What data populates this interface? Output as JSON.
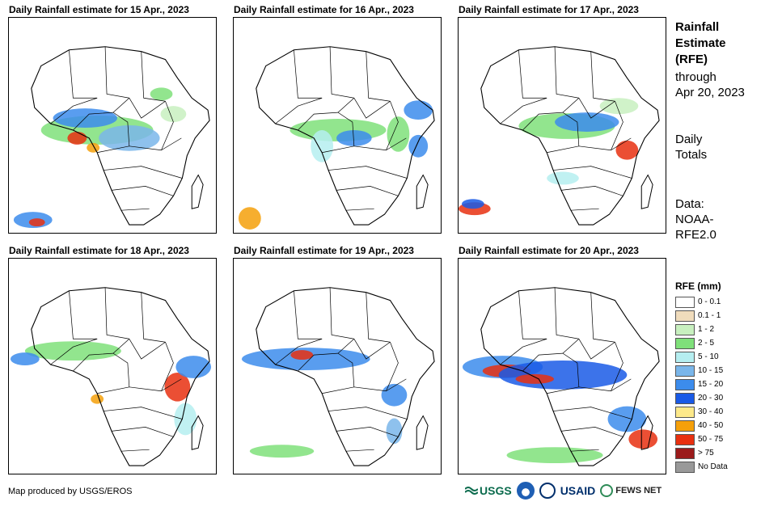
{
  "panels": [
    {
      "title": "Daily Rainfall estimate for 15 Apr., 2023"
    },
    {
      "title": "Daily Rainfall estimate for 16 Apr., 2023"
    },
    {
      "title": "Daily Rainfall estimate for 17 Apr., 2023"
    },
    {
      "title": "Daily Rainfall estimate for 18 Apr., 2023"
    },
    {
      "title": "Daily Rainfall estimate for 19 Apr., 2023"
    },
    {
      "title": "Daily Rainfall estimate for 20 Apr., 2023"
    }
  ],
  "side": {
    "title_lines": [
      "Rainfall",
      "Estimate",
      "(RFE)"
    ],
    "through_lines": [
      "through",
      "Apr 20, 2023"
    ],
    "daily_lines": [
      "Daily",
      "Totals"
    ],
    "data_lines": [
      "Data:",
      "NOAA-",
      "RFE2.0"
    ]
  },
  "legend": {
    "title": "RFE (mm)",
    "items": [
      {
        "label": "0 - 0.1",
        "color": "#ffffff"
      },
      {
        "label": "0.1 - 1",
        "color": "#f0dcbc"
      },
      {
        "label": "1 - 2",
        "color": "#c8f0bf"
      },
      {
        "label": "2 - 5",
        "color": "#7fe07a"
      },
      {
        "label": "5 - 10",
        "color": "#b5eef0"
      },
      {
        "label": "10 - 15",
        "color": "#7ab6ea"
      },
      {
        "label": "15 - 20",
        "color": "#3c8cec"
      },
      {
        "label": "20 - 30",
        "color": "#1a5ae6"
      },
      {
        "label": "30 - 40",
        "color": "#fde98a"
      },
      {
        "label": "40 - 50",
        "color": "#f5a00a"
      },
      {
        "label": "50 - 75",
        "color": "#e83010"
      },
      {
        "label": "> 75",
        "color": "#9b1b1b"
      },
      {
        "label": "No Data",
        "color": "#999999"
      }
    ]
  },
  "footer": {
    "credit": "Map produced by USGS/EROS",
    "usgs": "USGS",
    "usaid": "USAID",
    "fews": "FEWS NET"
  }
}
